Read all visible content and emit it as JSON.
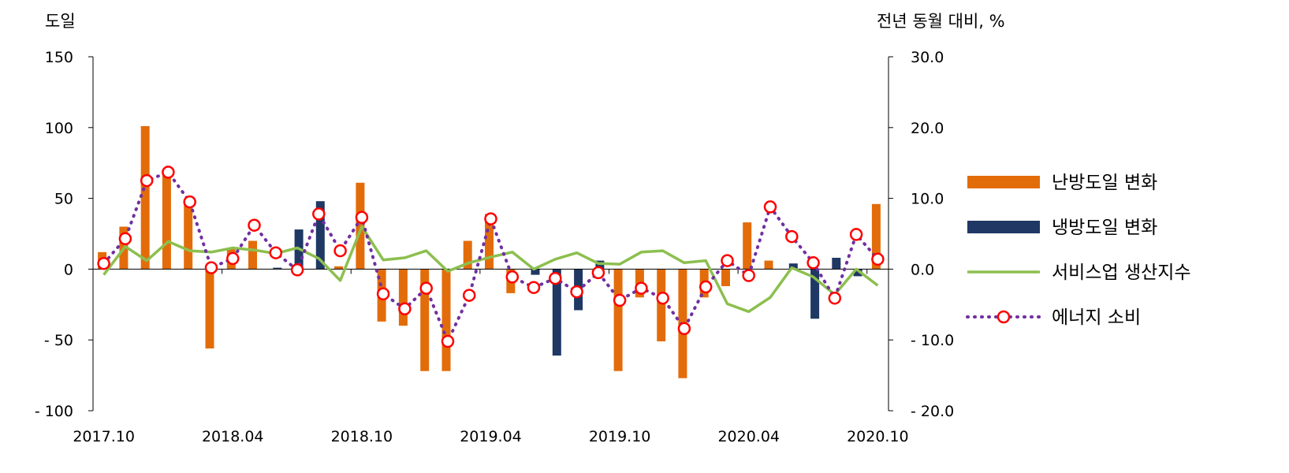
{
  "chart_data": {
    "type": "bar+line",
    "left_axis": {
      "title": "도일",
      "ylim": [
        -100,
        150
      ],
      "ticks": [
        150,
        100,
        50,
        0,
        -50,
        -100
      ],
      "tick_labels": [
        "150",
        "100",
        "50",
        "0",
        "- 50",
        "- 100"
      ]
    },
    "right_axis": {
      "title": "전년 동월 대비, %",
      "ylim": [
        -20,
        30
      ],
      "ticks": [
        30,
        20,
        10,
        0,
        -10,
        -20
      ],
      "tick_labels": [
        "30.0",
        "20.0",
        "10.0",
        "0.0",
        "- 10.0",
        "- 20.0"
      ]
    },
    "x_tick_labels": [
      {
        "index": 0,
        "label": "2017.10"
      },
      {
        "index": 6,
        "label": "2018.04"
      },
      {
        "index": 12,
        "label": "2018.10"
      },
      {
        "index": 18,
        "label": "2019.04"
      },
      {
        "index": 24,
        "label": "2019.10"
      },
      {
        "index": 30,
        "label": "2020.04"
      },
      {
        "index": 36,
        "label": "2020.10"
      }
    ],
    "months": [
      "2017.10",
      "2017.11",
      "2017.12",
      "2018.01",
      "2018.02",
      "2018.03",
      "2018.04",
      "2018.05",
      "2018.06",
      "2018.07",
      "2018.08",
      "2018.09",
      "2018.10",
      "2018.11",
      "2018.12",
      "2019.01",
      "2019.02",
      "2019.03",
      "2019.04",
      "2019.05",
      "2019.06",
      "2019.07",
      "2019.08",
      "2019.09",
      "2019.10",
      "2019.11",
      "2019.12",
      "2020.01",
      "2020.02",
      "2020.03",
      "2020.04",
      "2020.05",
      "2020.06",
      "2020.07",
      "2020.08",
      "2020.09",
      "2020.10"
    ],
    "series": [
      {
        "name": "난방도일 변화",
        "kind": "bar",
        "axis": "left",
        "color": "#E36C0A",
        "values": [
          12,
          30,
          101,
          69,
          48,
          -56,
          15,
          20,
          0,
          0,
          0,
          2,
          61,
          -37,
          -40,
          -72,
          -72,
          20,
          39,
          -17,
          0,
          0,
          0,
          0,
          -72,
          -20,
          -51,
          -77,
          -20,
          -12,
          33,
          6,
          0,
          0,
          0,
          0,
          46
        ]
      },
      {
        "name": "냉방도일 변화",
        "kind": "bar",
        "axis": "left",
        "color": "#1F3864",
        "values": [
          0,
          0,
          0,
          0,
          0,
          0,
          0,
          0,
          1,
          28,
          48,
          0,
          0,
          0,
          0,
          0,
          0,
          0,
          0,
          0,
          -4,
          -61,
          -29,
          6,
          0,
          0,
          0,
          0,
          0,
          0,
          0,
          0,
          4,
          -35,
          8,
          -5,
          0
        ]
      },
      {
        "name": "서비스업 생산지수",
        "kind": "line",
        "axis": "right",
        "color": "#8CBF4E",
        "values": [
          -0.8,
          3.2,
          1.2,
          3.9,
          2.6,
          2.4,
          3.0,
          2.7,
          2.2,
          3.0,
          1.5,
          -1.6,
          6.0,
          1.3,
          1.6,
          2.6,
          -0.3,
          0.9,
          1.7,
          2.4,
          0.0,
          1.4,
          2.3,
          0.8,
          0.7,
          2.4,
          2.6,
          0.9,
          1.2,
          -4.9,
          -6.0,
          -4.0,
          0.2,
          -1.1,
          -3.6,
          0.0,
          -2.3
        ]
      },
      {
        "name": "에너지 소비",
        "kind": "line",
        "axis": "right",
        "color": "#7030A0",
        "marker_fill": "#FFFFFF",
        "marker_edge": "#FF0000",
        "values": [
          0.8,
          4.3,
          12.5,
          13.7,
          9.5,
          0.2,
          1.5,
          6.2,
          2.3,
          -0.1,
          7.8,
          2.6,
          7.3,
          -3.5,
          -5.6,
          -2.7,
          -10.2,
          -3.7,
          7.1,
          -1.1,
          -2.6,
          -1.3,
          -3.2,
          -0.5,
          -4.4,
          -2.7,
          -4.1,
          -8.4,
          -2.5,
          1.2,
          -0.9,
          8.8,
          4.6,
          0.9,
          -4.1,
          4.9,
          1.4
        ]
      }
    ],
    "legend": {
      "placement": "right",
      "entries": [
        "난방도일 변화",
        "냉방도일 변화",
        "서비스업 생산지수",
        "에너지 소비"
      ]
    },
    "grid": false
  }
}
